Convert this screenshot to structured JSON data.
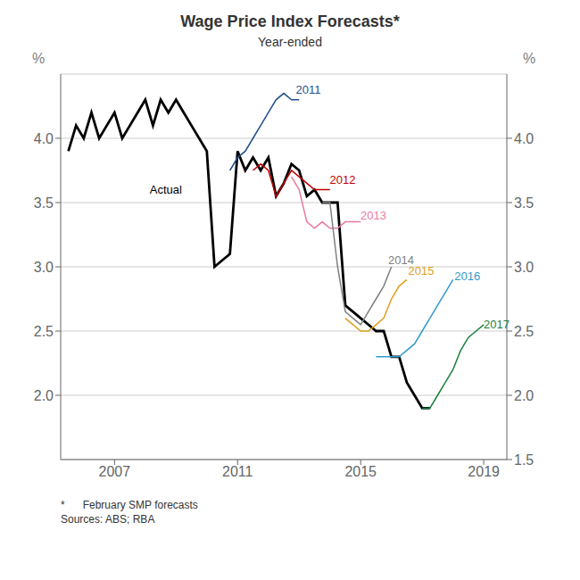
{
  "chart_data": {
    "type": "line",
    "title": "Wage Price Index Forecasts*",
    "subtitle": "Year-ended",
    "ylabel": "%",
    "y2label": "%",
    "footnotes": [
      "*      February SMP forecasts",
      "Sources: ABS; RBA"
    ],
    "xlim": [
      2005.25,
      2019.75
    ],
    "xticks": [
      2007,
      2011,
      2015,
      2019
    ],
    "ylim": [
      1.5,
      4.5
    ],
    "yticks": [
      {
        "value": 2.0,
        "label": "2.0"
      },
      {
        "value": 2.5,
        "label": "2.5"
      },
      {
        "value": 3.0,
        "label": "3.0"
      },
      {
        "value": 3.5,
        "label": "3.5"
      },
      {
        "value": 4.0,
        "label": "4.0"
      }
    ],
    "y2lim": [
      1.5,
      4.5
    ],
    "y2ticks": [
      {
        "value": 1.5,
        "label": "1.5"
      },
      {
        "value": 2.0,
        "label": "2.0"
      },
      {
        "value": 2.5,
        "label": "2.5"
      },
      {
        "value": 3.0,
        "label": "3.0"
      },
      {
        "value": 3.5,
        "label": "3.5"
      },
      {
        "value": 4.0,
        "label": "4.0"
      }
    ],
    "grid": true,
    "series": [
      {
        "name": "Actual",
        "color": "#000000",
        "x": [
          2005.5,
          2005.75,
          2006.0,
          2006.25,
          2006.5,
          2006.75,
          2007.0,
          2007.25,
          2007.5,
          2007.75,
          2008.0,
          2008.25,
          2008.5,
          2008.75,
          2009.0,
          2009.25,
          2009.5,
          2009.75,
          2010.0,
          2010.25,
          2010.5,
          2010.75,
          2011.0,
          2011.25,
          2011.5,
          2011.75,
          2012.0,
          2012.25,
          2012.5,
          2012.75,
          2013.0,
          2013.25,
          2013.5,
          2013.75,
          2014.0,
          2014.25,
          2014.5,
          2014.75,
          2015.0,
          2015.25,
          2015.5,
          2015.75,
          2016.0,
          2016.25,
          2016.5,
          2016.75,
          2017.0,
          2017.25
        ],
        "values": [
          3.9,
          4.1,
          4.0,
          4.2,
          4.0,
          4.1,
          4.2,
          4.0,
          4.1,
          4.2,
          4.3,
          4.1,
          4.3,
          4.2,
          4.3,
          4.2,
          4.1,
          4.0,
          3.9,
          3.0,
          3.05,
          3.1,
          3.9,
          3.75,
          3.85,
          3.75,
          3.85,
          3.55,
          3.65,
          3.8,
          3.75,
          3.55,
          3.6,
          3.5,
          3.5,
          3.5,
          2.7,
          2.65,
          2.6,
          2.55,
          2.5,
          2.5,
          2.3,
          2.3,
          2.1,
          2.0,
          1.9,
          1.9
        ]
      },
      {
        "name": "2011",
        "color": "#1f4e8c",
        "x": [
          2010.75,
          2011.0,
          2011.25,
          2011.5,
          2011.75,
          2012.0,
          2012.25,
          2012.5,
          2012.75,
          2013.0
        ],
        "values": [
          3.75,
          3.85,
          3.9,
          4.0,
          4.1,
          4.2,
          4.3,
          4.35,
          4.3,
          4.3
        ]
      },
      {
        "name": "2012",
        "color": "#c00000",
        "x": [
          2011.5,
          2011.75,
          2012.0,
          2012.25,
          2012.5,
          2012.75,
          2013.0,
          2013.25,
          2013.5,
          2013.75,
          2014.0
        ],
        "values": [
          3.75,
          3.8,
          3.75,
          3.55,
          3.65,
          3.75,
          3.7,
          3.65,
          3.6,
          3.6,
          3.6
        ]
      },
      {
        "name": "2013",
        "color": "#e879a0",
        "x": [
          2012.75,
          2013.0,
          2013.25,
          2013.5,
          2013.75,
          2014.0,
          2014.25,
          2014.5,
          2014.75,
          2015.0
        ],
        "values": [
          3.7,
          3.6,
          3.35,
          3.3,
          3.35,
          3.3,
          3.3,
          3.35,
          3.35,
          3.35
        ]
      },
      {
        "name": "2014",
        "color": "#808080",
        "x": [
          2013.75,
          2014.0,
          2014.25,
          2014.5,
          2014.75,
          2015.0,
          2015.25,
          2015.5,
          2015.75,
          2016.0
        ],
        "values": [
          3.5,
          3.5,
          3.0,
          2.65,
          2.6,
          2.55,
          2.65,
          2.75,
          2.85,
          3.0
        ]
      },
      {
        "name": "2015",
        "color": "#e0a020",
        "x": [
          2014.5,
          2014.75,
          2015.0,
          2015.25,
          2015.5,
          2015.75,
          2016.0,
          2016.25,
          2016.5
        ],
        "values": [
          2.6,
          2.55,
          2.5,
          2.5,
          2.55,
          2.6,
          2.75,
          2.85,
          2.9
        ]
      },
      {
        "name": "2016",
        "color": "#3399cc",
        "x": [
          2015.5,
          2015.75,
          2016.0,
          2016.25,
          2016.5,
          2016.75,
          2017.0,
          2017.25,
          2017.5,
          2017.75,
          2018.0
        ],
        "values": [
          2.3,
          2.3,
          2.3,
          2.3,
          2.35,
          2.4,
          2.5,
          2.6,
          2.7,
          2.8,
          2.9
        ]
      },
      {
        "name": "2017",
        "color": "#1a8040",
        "x": [
          2017.0,
          2017.25,
          2017.5,
          2017.75,
          2018.0,
          2018.25,
          2018.5,
          2018.75,
          2019.0
        ],
        "values": [
          1.9,
          1.9,
          2.0,
          2.1,
          2.2,
          2.35,
          2.45,
          2.5,
          2.55
        ]
      }
    ],
    "annotations": [
      {
        "text": "Actual",
        "x": 2008.0,
        "y": 3.6,
        "color": "#000000"
      },
      {
        "text": "2011",
        "x": 2012.75,
        "y": 4.38,
        "color": "#1f4e8c"
      },
      {
        "text": "2012",
        "x": 2013.85,
        "y": 3.68,
        "color": "#c00000"
      },
      {
        "text": "2013",
        "x": 2014.85,
        "y": 3.4,
        "color": "#e879a0"
      },
      {
        "text": "2014",
        "x": 2015.75,
        "y": 3.05,
        "color": "#808080"
      },
      {
        "text": "2015",
        "x": 2016.4,
        "y": 2.97,
        "color": "#e0a020"
      },
      {
        "text": "2016",
        "x": 2017.9,
        "y": 2.93,
        "color": "#3399cc"
      },
      {
        "text": "2017",
        "x": 2018.85,
        "y": 2.55,
        "color": "#1a8040"
      }
    ]
  }
}
